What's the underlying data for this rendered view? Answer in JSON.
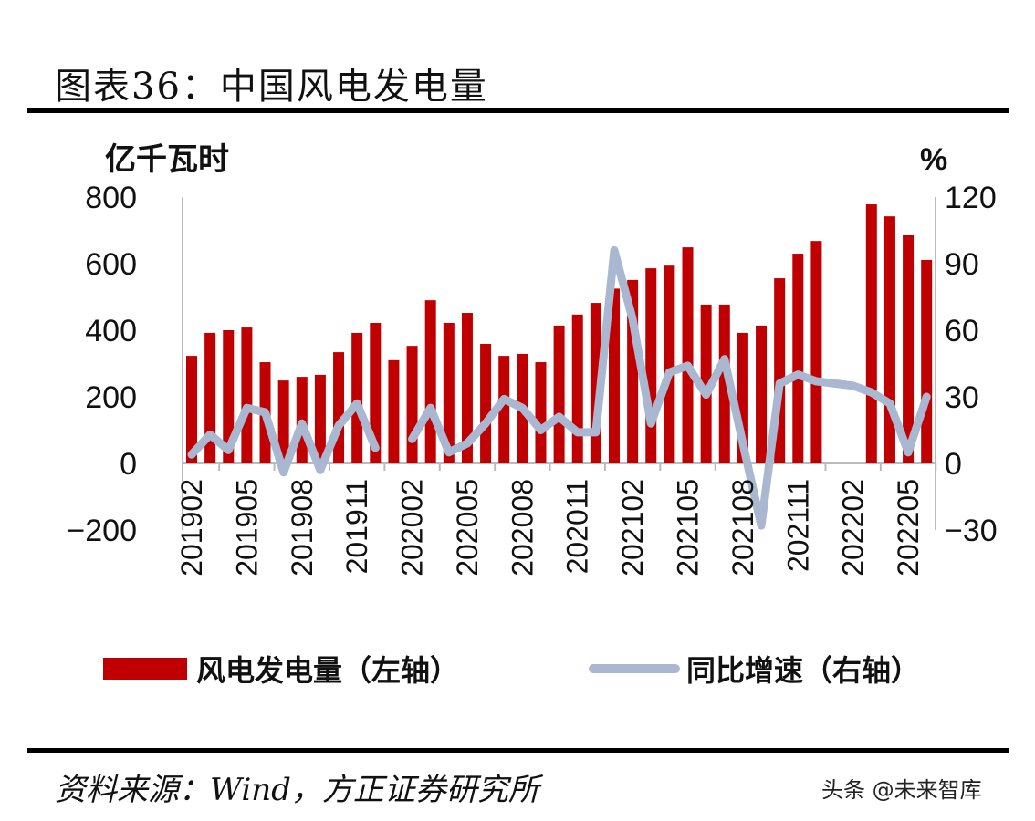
{
  "header": {
    "title": "图表36：中国风电发电量"
  },
  "footer": {
    "source": "资料来源：Wind，方正证券研究所",
    "watermark": "头条 @未来智库"
  },
  "chart_data": {
    "type": "bar+line",
    "title": "图表36：中国风电发电量",
    "ylabel_left": "亿千瓦时",
    "ylabel_right": "%",
    "ylim_left": [
      -200,
      800
    ],
    "ylim_right": [
      -30,
      120
    ],
    "yticks_left": [
      "800",
      "600",
      "400",
      "200",
      "0",
      "-200"
    ],
    "yticks_right": [
      "120",
      "90",
      "60",
      "30",
      "0",
      "-30"
    ],
    "xtick_labels": [
      "201902",
      "201905",
      "201908",
      "201911",
      "202002",
      "202005",
      "202008",
      "202011",
      "202102",
      "202105",
      "202108",
      "202111",
      "202202",
      "202205"
    ],
    "categories": [
      "201902",
      "201903",
      "201904",
      "201905",
      "201906",
      "201907",
      "201908",
      "201909",
      "201910",
      "201911",
      "201912",
      "202001",
      "202002",
      "202003",
      "202004",
      "202005",
      "202006",
      "202007",
      "202008",
      "202009",
      "202010",
      "202011",
      "202012",
      "202101",
      "202102",
      "202103",
      "202104",
      "202105",
      "202106",
      "202107",
      "202108",
      "202109",
      "202110",
      "202111",
      "202112",
      "202201",
      "202202",
      "202203",
      "202204",
      "202205",
      "202206"
    ],
    "series": [
      {
        "name": "风电发电量（左轴）",
        "type": "bar",
        "axis": "left",
        "color": "#C00000",
        "values": [
          323,
          392,
          400,
          408,
          304,
          249,
          260,
          266,
          334,
          392,
          422,
          310,
          353,
          490,
          422,
          452,
          359,
          323,
          329,
          304,
          414,
          447,
          482,
          525,
          551,
          586,
          594,
          649,
          477,
          477,
          392,
          414,
          556,
          630,
          668,
          null,
          null,
          778,
          742,
          685,
          611
        ]
      },
      {
        "name": "同比增速（右轴）",
        "type": "line",
        "axis": "right",
        "color": "#A9B8D0",
        "values": [
          4,
          13,
          6,
          25,
          23,
          -4,
          18,
          -3,
          17,
          27,
          7,
          null,
          11,
          25,
          5,
          9,
          18,
          29,
          25,
          15,
          21,
          14,
          14,
          96,
          65,
          18,
          41,
          44,
          31,
          47,
          9,
          -28,
          36,
          40,
          37,
          36,
          35,
          32,
          27,
          5,
          30
        ]
      }
    ],
    "legend": "bottom",
    "grid": false
  }
}
